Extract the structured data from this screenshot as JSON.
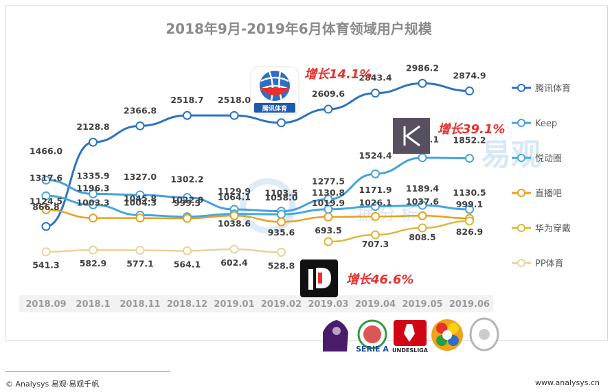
{
  "chart_data": {
    "type": "line",
    "title": "2018年9月-2019年6月体育领域用户规模",
    "categories": [
      "2018.09",
      "2018.1",
      "2018.11",
      "2018.12",
      "2019.01",
      "2019.02",
      "2019.03",
      "2019.04",
      "2019.05",
      "2019.06"
    ],
    "series": [
      {
        "name": "腾讯体育",
        "color": "#2b73c0",
        "values": [
          866.8,
          2128.8,
          2366.8,
          2518.7,
          2518.0,
          2412.0,
          2609.6,
          2843.4,
          2986.2,
          2874.9
        ]
      },
      {
        "name": "Keep",
        "color": "#46a0de",
        "values": [
          1466.0,
          1335.9,
          1327.0,
          1302.2,
          1129.9,
          1103.5,
          1277.5,
          1524.4,
          1676.1,
          1852.2
        ]
      },
      {
        "name": "悦动圈",
        "color": "#41a8e0",
        "values": [
          1317.6,
          1196.3,
          1045.8,
          1022.9,
          1064.1,
          1058.0,
          1130.8,
          1171.9,
          1189.4,
          1130.5
        ]
      },
      {
        "name": "直播吧",
        "color": "#e8a01e",
        "values": [
          1124.5,
          1003.3,
          1004.3,
          999.3,
          1038.6,
          935.6,
          1019.9,
          1026.1,
          1037.6,
          999.1
        ]
      },
      {
        "name": "华为穿戴",
        "color": "#dcb83a",
        "values": [
          null,
          null,
          null,
          null,
          null,
          null,
          693.5,
          707.3,
          808.5,
          826.9
        ]
      },
      {
        "name": "PP体育",
        "color": "#e8d49a",
        "values": [
          541.3,
          582.9,
          577.1,
          564.1,
          602.4,
          528.8,
          null,
          null,
          null,
          null
        ]
      }
    ],
    "annotations": [
      "增长14.1%",
      "增长39.1%",
      "增长46.6%"
    ]
  },
  "logos": {
    "tencent": "腾讯体育",
    "seriea": "SERIE A",
    "bundesliga": "UNDESLIGA"
  },
  "watermark": "易观",
  "footer": {
    "left": "© Analysys 易观·易观千帆",
    "right": "www.analysys.cn"
  }
}
